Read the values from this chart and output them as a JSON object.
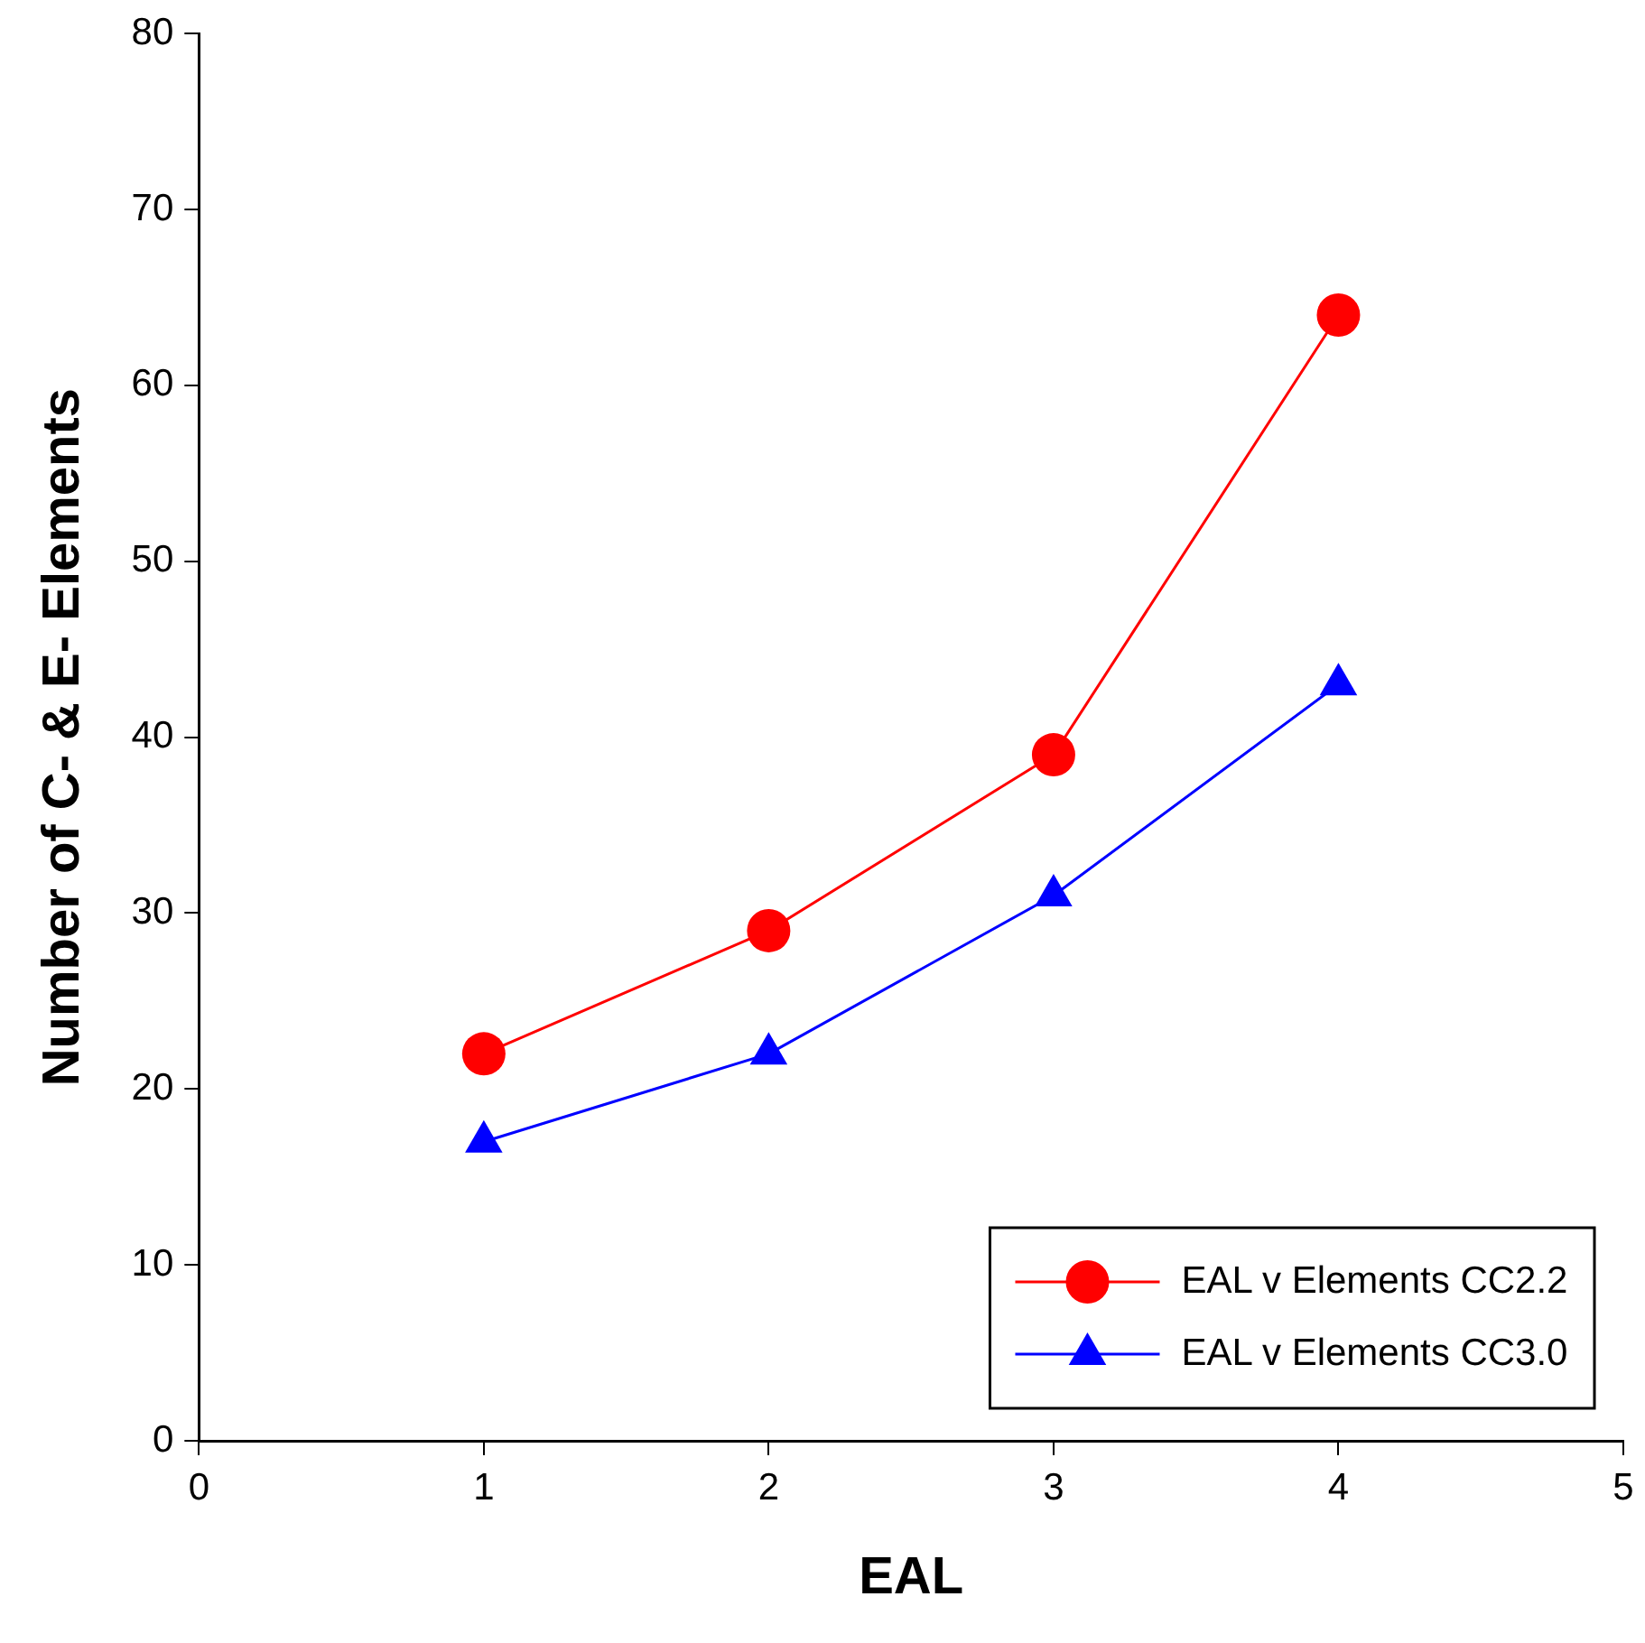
{
  "chart_data": {
    "type": "line",
    "xlabel": "EAL",
    "ylabel": "Number of C- & E- Elements",
    "x": [
      1,
      2,
      3,
      4
    ],
    "series": [
      {
        "name": "EAL v Elements CC2.2",
        "color": "#ff0000",
        "marker": "circle",
        "values": [
          22,
          29,
          39,
          64
        ]
      },
      {
        "name": "EAL v Elements CC3.0",
        "color": "#0000ff",
        "marker": "triangle",
        "values": [
          17,
          22,
          31,
          43
        ]
      }
    ],
    "xlim": [
      0,
      5
    ],
    "xticks": [
      0,
      1,
      2,
      3,
      4,
      5
    ],
    "ylim": [
      0,
      80
    ],
    "yticks": [
      0,
      10,
      20,
      30,
      40,
      50,
      60,
      70,
      80
    ],
    "grid": false,
    "legend": "bottom right",
    "line_style": "solid"
  }
}
